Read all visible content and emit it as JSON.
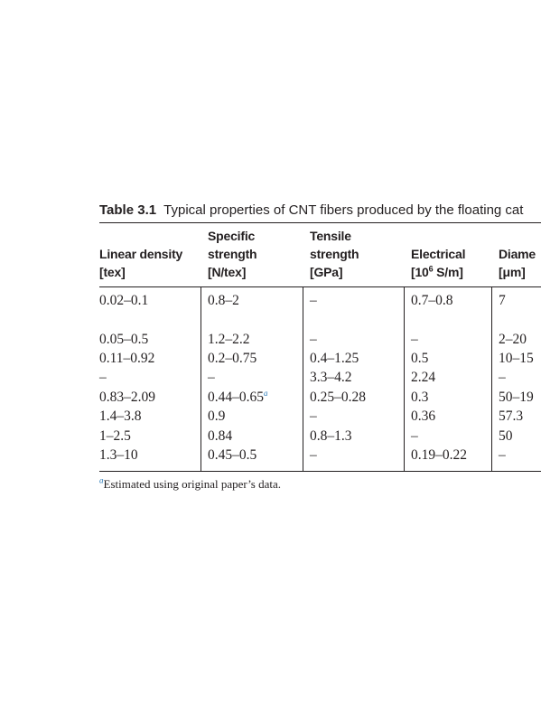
{
  "caption": {
    "label": "Table 3.1",
    "text": "Typical properties of CNT fibers produced by the floating cat"
  },
  "table": {
    "headers": [
      [
        "Linear density",
        "[tex]"
      ],
      [
        "Specific",
        "strength",
        "[N/tex]"
      ],
      [
        "Tensile",
        "strength",
        "[GPa]"
      ],
      [
        "Electrical",
        {
          "base": "[10",
          "sup": "6",
          "rest": " S/m]"
        }
      ],
      [
        "Diame",
        "[μm]"
      ]
    ],
    "rows": [
      [
        "0.02–0.1",
        "0.8–2",
        "–",
        "0.7–0.8",
        "7"
      ],
      [
        "0.05–0.5",
        "1.2–2.2",
        "–",
        "–",
        "2–20"
      ],
      [
        "0.11–0.92",
        "0.2–0.75",
        "0.4–1.25",
        "0.5",
        "10–15"
      ],
      [
        "–",
        "–",
        "3.3–4.2",
        "2.24",
        "–"
      ],
      [
        "0.83–2.09",
        {
          "text": "0.44–0.65",
          "note": "a"
        },
        "0.25–0.28",
        "0.3",
        "50–19"
      ],
      [
        "1.4–3.8",
        "0.9",
        "–",
        "0.36",
        "57.3"
      ],
      [
        "1–2.5",
        "0.84",
        "0.8–1.3",
        "–",
        "50"
      ],
      [
        "1.3–10",
        "0.45–0.5",
        "–",
        "0.19–0.22",
        "–"
      ]
    ]
  },
  "footnote": {
    "mark": "a",
    "text": "Estimated using original paper’s data."
  }
}
